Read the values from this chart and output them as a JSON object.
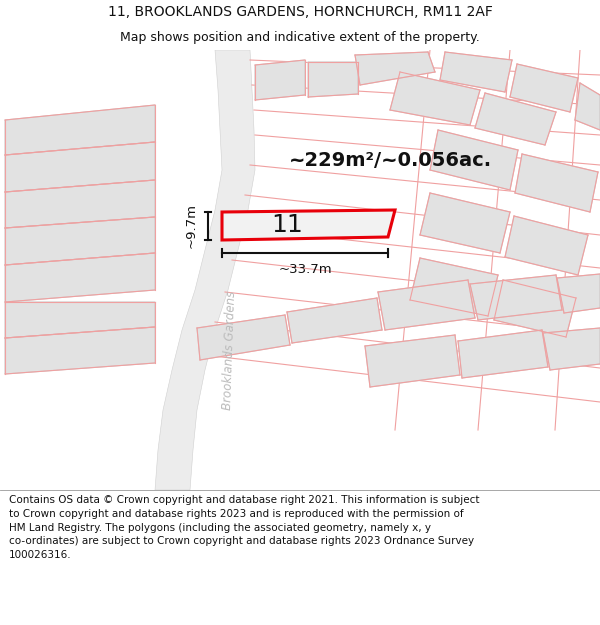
{
  "title_line1": "11, BROOKLANDS GARDENS, HORNCHURCH, RM11 2AF",
  "title_line2": "Map shows position and indicative extent of the property.",
  "footer_text": "Contains OS data © Crown copyright and database right 2021. This information is subject\nto Crown copyright and database rights 2023 and is reproduced with the permission of\nHM Land Registry. The polygons (including the associated geometry, namely x, y\nco-ordinates) are subject to Crown copyright and database rights 2023 Ordnance Survey\n100026316.",
  "area_label": "~229m²/~0.056ac.",
  "number_label": "11",
  "dim_width": "~33.7m",
  "dim_height": "~9.7m",
  "street_label": "Brooklands Gardens",
  "bg_color": "#ffffff",
  "road_fill": "#ececec",
  "plot_fill": "#e2e2e2",
  "plot_edge": "#cccccc",
  "pink_line": "#f0a0a0",
  "highlight_color": "#e8000a",
  "dim_line_color": "#111111",
  "text_color": "#111111",
  "street_text_color": "#bbbbbb",
  "title_fontsize": 10,
  "subtitle_fontsize": 9,
  "footer_fontsize": 7.5
}
